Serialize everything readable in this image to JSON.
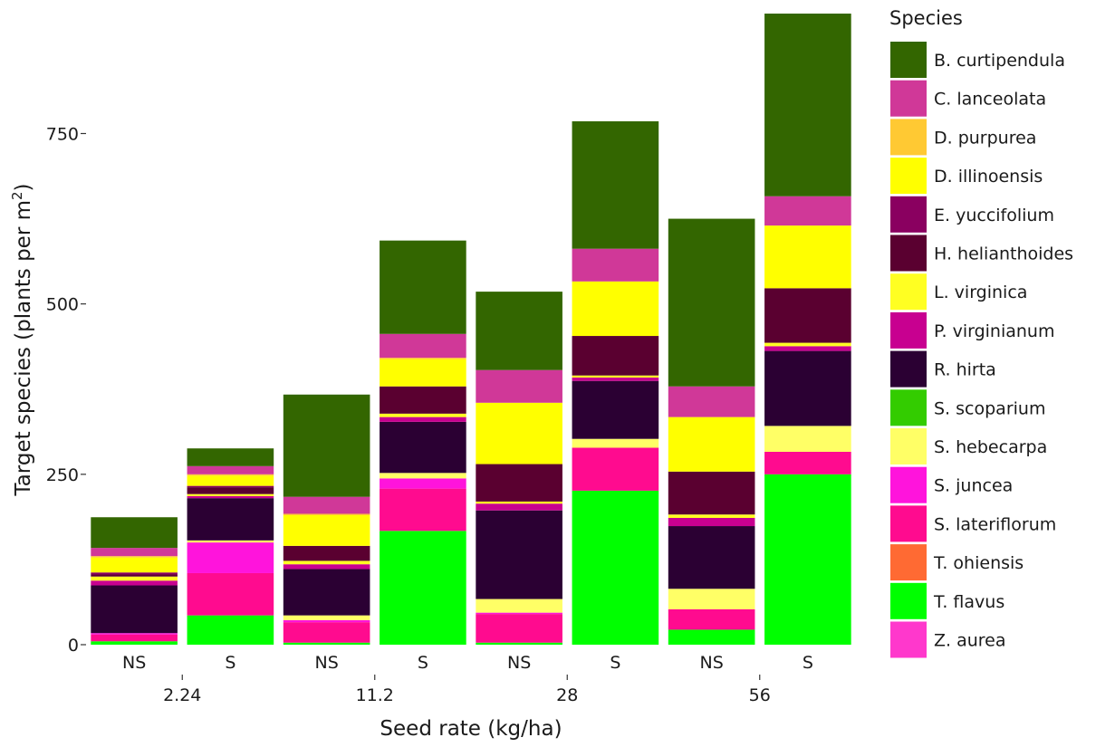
{
  "chart_data": {
    "type": "bar",
    "stacked": true,
    "xlabel": "Seed rate (kg/ha)",
    "ylabel_main": "Target species (plants per m",
    "ylabel_sup": "2",
    "ylabel_close": ")",
    "ylim": [
      0,
      930
    ],
    "yticks": [
      {
        "value": 0,
        "label": "0"
      },
      {
        "value": 250,
        "label": "250"
      },
      {
        "value": 500,
        "label": "500"
      },
      {
        "value": 750,
        "label": "750"
      }
    ],
    "categories": [
      "NS",
      "S",
      "NS",
      "S",
      "NS",
      "S",
      "NS",
      "S"
    ],
    "groups": [
      {
        "label": "2.24",
        "span": [
          0,
          1
        ]
      },
      {
        "label": "11.2",
        "span": [
          2,
          3
        ]
      },
      {
        "label": "28",
        "span": [
          4,
          5
        ]
      },
      {
        "label": "56",
        "span": [
          6,
          7
        ]
      }
    ],
    "legend_title": "Species",
    "legend_placement": "right",
    "series": [
      {
        "name": "T. flavus",
        "color": "#00ff00",
        "values": [
          5,
          43,
          3,
          167,
          3,
          226,
          22,
          250
        ]
      },
      {
        "name": "T. ohiensis",
        "color": "#ff6a33",
        "values": [
          0,
          0,
          0,
          0,
          0,
          0,
          0,
          0
        ]
      },
      {
        "name": "S. lateriflorum",
        "color": "#ff0b8f",
        "values": [
          10,
          62,
          30,
          62,
          42,
          63,
          30,
          33
        ]
      },
      {
        "name": "S. juncea",
        "color": "#ff14dc",
        "values": [
          2,
          45,
          3,
          15,
          2,
          0,
          0,
          0
        ]
      },
      {
        "name": "S. hebecarpa",
        "color": "#ffff66",
        "values": [
          0,
          3,
          7,
          8,
          20,
          13,
          30,
          38
        ]
      },
      {
        "name": "S. scoparium",
        "color": "#33cc00",
        "values": [
          0,
          0,
          0,
          0,
          0,
          0,
          0,
          0
        ]
      },
      {
        "name": "R. hirta",
        "color": "#2b0033",
        "values": [
          70,
          62,
          68,
          75,
          130,
          85,
          92,
          110
        ]
      },
      {
        "name": "P. virginianum",
        "color": "#c80090",
        "values": [
          7,
          3,
          7,
          7,
          10,
          5,
          12,
          7
        ]
      },
      {
        "name": "L. virginica",
        "color": "#ffff22",
        "values": [
          6,
          3,
          5,
          5,
          3,
          3,
          5,
          5
        ]
      },
      {
        "name": "H. helianthoides",
        "color": "#5a0030",
        "values": [
          3,
          10,
          22,
          40,
          55,
          58,
          63,
          80
        ]
      },
      {
        "name": "E. yuccifolium",
        "color": "#8a0060",
        "values": [
          3,
          2,
          0,
          0,
          0,
          0,
          0,
          0
        ]
      },
      {
        "name": "D. illinoensis",
        "color": "#ffff00",
        "values": [
          22,
          15,
          45,
          40,
          90,
          80,
          80,
          92
        ]
      },
      {
        "name": "D. purpurea",
        "color": "#ffc933",
        "values": [
          2,
          2,
          2,
          2,
          0,
          0,
          0,
          0
        ]
      },
      {
        "name": "C. lanceolata",
        "color": "#d03898",
        "values": [
          12,
          12,
          25,
          35,
          48,
          48,
          45,
          43
        ]
      },
      {
        "name": "B. curtipendula",
        "color": "#336600",
        "values": [
          45,
          26,
          150,
          137,
          115,
          187,
          246,
          268
        ]
      },
      {
        "name": "Z. aurea",
        "color": "#ff38cc",
        "values": [
          0,
          0,
          0,
          0,
          0,
          0,
          0,
          0
        ]
      }
    ],
    "legend_order": [
      "B. curtipendula",
      "C. lanceolata",
      "D. purpurea",
      "D. illinoensis",
      "E. yuccifolium",
      "H. helianthoides",
      "L. virginica",
      "P. virginianum",
      "R. hirta",
      "S. scoparium",
      "S. hebecarpa",
      "S. juncea",
      "S. lateriflorum",
      "T. ohiensis",
      "T. flavus",
      "Z. aurea"
    ],
    "grid": false
  }
}
